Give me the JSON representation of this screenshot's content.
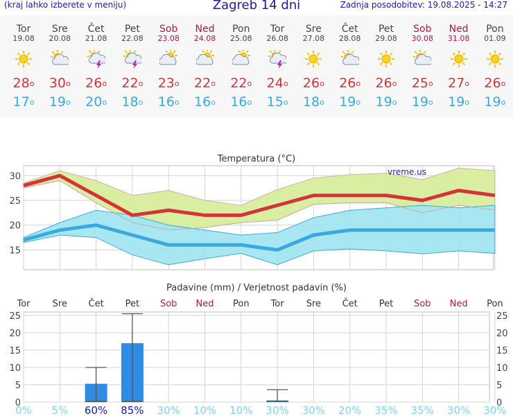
{
  "header": {
    "menu_hint": "(kraj lahko izberete v meniju)",
    "title": "Zagreb 14 dni",
    "updated": "Zadnja posodobitev: 19.08.2025 - 14:27"
  },
  "days": [
    {
      "name": "Tor",
      "date": "19.08",
      "icon": "sun-icon",
      "tmax": "28",
      "tmin": "17",
      "weekend": false
    },
    {
      "name": "Sre",
      "date": "20.08",
      "icon": "sun-cloud-icon",
      "tmax": "30",
      "tmin": "19",
      "weekend": false
    },
    {
      "name": "Čet",
      "date": "21.08",
      "icon": "sun-cloud-storm-icon",
      "tmax": "26",
      "tmin": "20",
      "weekend": false
    },
    {
      "name": "Pet",
      "date": "22.08",
      "icon": "sun-cloud-storm-icon",
      "tmax": "22",
      "tmin": "18",
      "weekend": false
    },
    {
      "name": "Sob",
      "date": "23.08",
      "icon": "cloud-sun-icon",
      "tmax": "23",
      "tmin": "16",
      "weekend": true
    },
    {
      "name": "Ned",
      "date": "24.08",
      "icon": "cloud-sun-icon",
      "tmax": "22",
      "tmin": "16",
      "weekend": true
    },
    {
      "name": "Pon",
      "date": "25.08",
      "icon": "cloud-sun-icon",
      "tmax": "22",
      "tmin": "16",
      "weekend": false
    },
    {
      "name": "Tor",
      "date": "26.08",
      "icon": "sun-cloud-storm-icon",
      "tmax": "24",
      "tmin": "15",
      "weekend": false
    },
    {
      "name": "Sre",
      "date": "27.08",
      "icon": "sun-icon",
      "tmax": "26",
      "tmin": "18",
      "weekend": false
    },
    {
      "name": "Čet",
      "date": "28.08",
      "icon": "sun-cloud-icon",
      "tmax": "26",
      "tmin": "19",
      "weekend": false
    },
    {
      "name": "Pet",
      "date": "29.08",
      "icon": "sun-icon",
      "tmax": "26",
      "tmin": "19",
      "weekend": false
    },
    {
      "name": "Sob",
      "date": "30.08",
      "icon": "sun-cloud-icon",
      "tmax": "25",
      "tmin": "19",
      "weekend": true
    },
    {
      "name": "Ned",
      "date": "31.08",
      "icon": "sun-icon",
      "tmax": "27",
      "tmin": "19",
      "weekend": true
    },
    {
      "name": "Pon",
      "date": "01.09",
      "icon": "sun-icon",
      "tmax": "26",
      "tmin": "19",
      "weekend": false
    }
  ],
  "colors": {
    "max_line": "#d4333a",
    "min_line": "#3aa9e0",
    "max_band": "#d9eea0",
    "min_band": "#9ee4f1",
    "overlap": "#8fd88a",
    "bar": "#2f8be3",
    "weekend": "#b0154d",
    "prob_low": "#7fd3f2",
    "prob_high": "#1a1aa6"
  },
  "chart_data": [
    {
      "type": "line",
      "title": "Temperatura (°C)",
      "watermark": "vreme.us",
      "categories": [
        "Tor",
        "Sre",
        "Čet",
        "Pet",
        "Sob",
        "Ned",
        "Pon",
        "Tor",
        "Sre",
        "Čet",
        "Pet",
        "Sob",
        "Ned",
        "Pon"
      ],
      "ylim": [
        11,
        32
      ],
      "yticks": [
        15,
        20,
        25,
        30
      ],
      "series": [
        {
          "role": "max",
          "values": [
            28,
            30,
            26,
            22,
            23,
            22,
            22,
            24,
            26,
            26,
            26,
            25,
            27,
            26
          ]
        },
        {
          "role": "min",
          "values": [
            17,
            19,
            20,
            18,
            16,
            16,
            16,
            15,
            18,
            19,
            19,
            19,
            19,
            19
          ]
        }
      ],
      "max_range": {
        "upper": [
          28.5,
          31,
          29,
          26,
          27,
          25,
          24,
          27.2,
          29.5,
          30.2,
          30.5,
          29.2,
          31.5,
          31
        ],
        "lower": [
          27.5,
          29,
          24.5,
          20.5,
          19,
          19.5,
          20.5,
          21,
          24.2,
          24.5,
          24.5,
          22.5,
          24,
          23
        ]
      },
      "min_range": {
        "upper": [
          17.5,
          20.5,
          23,
          22,
          20,
          19,
          18,
          18.5,
          21.5,
          23,
          23.5,
          24,
          23.5,
          24
        ],
        "lower": [
          16.5,
          18,
          17.5,
          14,
          12,
          13.2,
          14.3,
          12,
          14.8,
          15.2,
          14.8,
          14.2,
          14.8,
          14.3
        ]
      }
    },
    {
      "type": "bar",
      "title": "Padavine (mm) / Verjetnost padavin (%)",
      "categories": [
        "Tor",
        "Sre",
        "Čet",
        "Pet",
        "Sob",
        "Ned",
        "Pon",
        "Tor",
        "Sre",
        "Čet",
        "Pet",
        "Sob",
        "Ned",
        "Pon"
      ],
      "ylim": [
        0,
        26
      ],
      "yticks": [
        0,
        5,
        10,
        15,
        20,
        25
      ],
      "values": [
        0,
        0,
        5.3,
        17,
        0,
        0,
        0,
        0.5,
        0,
        0,
        0,
        0,
        0,
        0
      ],
      "err_high": [
        0,
        0,
        10,
        25.5,
        0,
        0,
        0,
        3.6,
        0,
        0,
        0,
        0,
        0,
        0
      ],
      "probability": [
        "0%",
        "5%",
        "60%",
        "85%",
        "30%",
        "10%",
        "10%",
        "30%",
        "30%",
        "20%",
        "35%",
        "35%",
        "30%",
        "30%"
      ]
    }
  ]
}
